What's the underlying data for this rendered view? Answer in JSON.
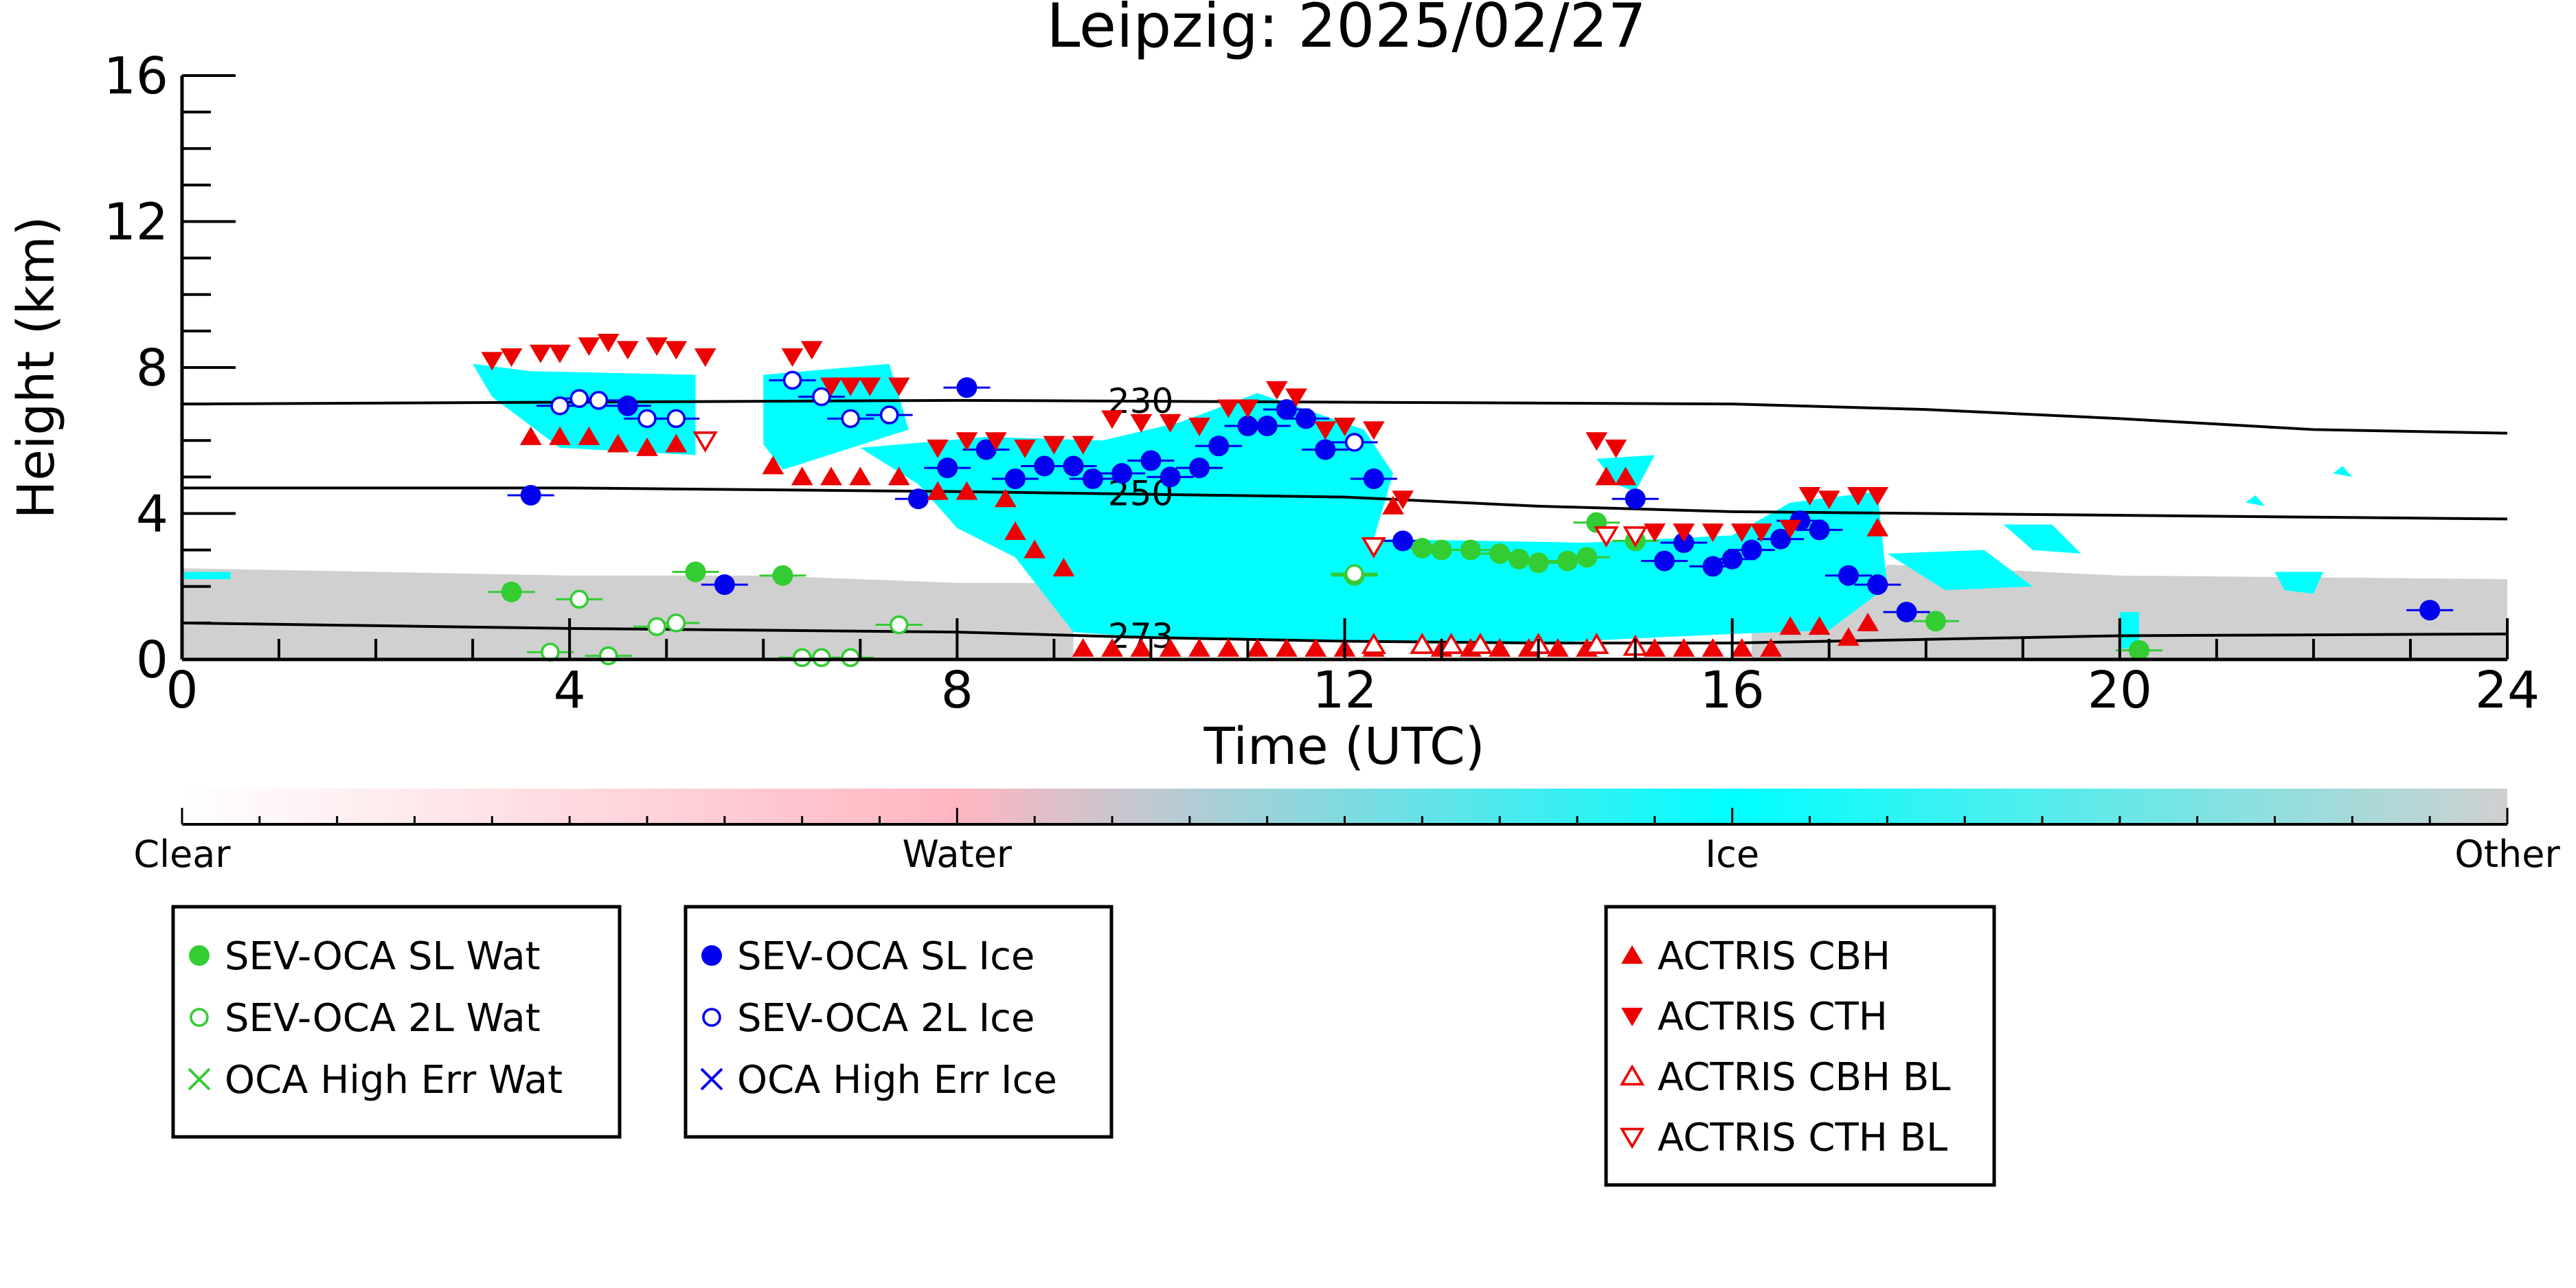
{
  "chart_data": {
    "type": "scatter",
    "title": "Leipzig: 2025/02/27",
    "xlabel": "Time (UTC)",
    "ylabel": "Height (km)",
    "xlim": [
      0,
      24
    ],
    "ylim": [
      0,
      16
    ],
    "x_ticks": [
      0,
      4,
      8,
      12,
      16,
      20,
      24
    ],
    "y_ticks": [
      0,
      4,
      8,
      12,
      16
    ],
    "colors": {
      "water_points": "#33cc33",
      "ice_points": "#0000ee",
      "actris": "#ee0000",
      "ice_mask": "#00ffff",
      "other_mask": "#d0d0d0",
      "isotherm": "#000000"
    },
    "colorbar": {
      "labels": [
        "Clear",
        "Water",
        "Ice",
        "Other"
      ],
      "stops": [
        "#ffffff",
        "#ffb6c1",
        "#00ffff",
        "#d0d0d0"
      ]
    },
    "legends": [
      {
        "items": [
          {
            "label": "SEV-OCA SL Wat",
            "marker": "circle-filled",
            "color": "#33cc33"
          },
          {
            "label": "SEV-OCA 2L Wat",
            "marker": "circle-open",
            "color": "#33cc33"
          },
          {
            "label": "OCA High Err Wat",
            "marker": "x",
            "color": "#33cc33"
          }
        ]
      },
      {
        "items": [
          {
            "label": "SEV-OCA SL Ice",
            "marker": "circle-filled",
            "color": "#0000ee"
          },
          {
            "label": "SEV-OCA 2L Ice",
            "marker": "circle-open",
            "color": "#0000ee"
          },
          {
            "label": "OCA High Err Ice",
            "marker": "x",
            "color": "#0000ee"
          }
        ]
      },
      {
        "items": [
          {
            "label": "ACTRIS CBH",
            "marker": "triangle-up-filled",
            "color": "#ee0000"
          },
          {
            "label": "ACTRIS CTH",
            "marker": "triangle-down-filled",
            "color": "#ee0000"
          },
          {
            "label": "ACTRIS CBH BL",
            "marker": "triangle-up-open",
            "color": "#ee0000"
          },
          {
            "label": "ACTRIS CTH BL",
            "marker": "triangle-down-open",
            "color": "#ee0000"
          }
        ]
      }
    ],
    "isotherms": [
      {
        "label": "230",
        "label_x": 9.5,
        "points": [
          [
            0,
            7.0
          ],
          [
            4,
            7.05
          ],
          [
            8,
            7.1
          ],
          [
            12,
            7.05
          ],
          [
            16,
            7.0
          ],
          [
            18,
            6.85
          ],
          [
            20,
            6.6
          ],
          [
            22,
            6.3
          ],
          [
            24,
            6.2
          ]
        ]
      },
      {
        "label": "250",
        "label_x": 9.5,
        "points": [
          [
            0,
            4.7
          ],
          [
            4,
            4.7
          ],
          [
            8,
            4.6
          ],
          [
            12,
            4.45
          ],
          [
            14,
            4.2
          ],
          [
            16,
            4.05
          ],
          [
            20,
            3.95
          ],
          [
            24,
            3.85
          ]
        ]
      },
      {
        "label": "273",
        "label_x": 9.5,
        "points": [
          [
            0,
            1.0
          ],
          [
            4,
            0.85
          ],
          [
            8,
            0.75
          ],
          [
            10,
            0.6
          ],
          [
            12,
            0.5
          ],
          [
            14,
            0.45
          ],
          [
            16,
            0.45
          ],
          [
            18,
            0.55
          ],
          [
            20,
            0.65
          ],
          [
            24,
            0.7
          ]
        ]
      }
    ],
    "cloud_mask": {
      "other": [
        [
          [
            0,
            2.5
          ],
          [
            4,
            2.3
          ],
          [
            6,
            2.3
          ],
          [
            8,
            2.1
          ],
          [
            9.2,
            2.1
          ],
          [
            9.2,
            0
          ],
          [
            0,
            0
          ]
        ],
        [
          [
            16.2,
            1.5
          ],
          [
            17.4,
            1.6
          ],
          [
            17.6,
            2.6
          ],
          [
            20,
            2.3
          ],
          [
            24,
            2.2
          ],
          [
            24,
            0
          ],
          [
            16.2,
            0
          ]
        ]
      ],
      "ice": [
        [
          [
            3,
            8.1
          ],
          [
            3.6,
            7.9
          ],
          [
            5.3,
            7.8
          ],
          [
            5.3,
            5.6
          ],
          [
            3.9,
            5.8
          ],
          [
            3.2,
            7.2
          ]
        ],
        [
          [
            6.0,
            7.8
          ],
          [
            7.3,
            8.1
          ],
          [
            7.5,
            6.3
          ],
          [
            6.2,
            5.2
          ],
          [
            6.0,
            5.9
          ]
        ],
        [
          [
            7.0,
            5.8
          ],
          [
            8.3,
            6.1
          ],
          [
            9.5,
            6.0
          ],
          [
            10.3,
            6.5
          ],
          [
            11.1,
            7.3
          ],
          [
            12.2,
            6.3
          ],
          [
            12.5,
            5.1
          ],
          [
            12.3,
            3.3
          ],
          [
            14.5,
            3.2
          ],
          [
            16.0,
            3.4
          ],
          [
            16.6,
            4.3
          ],
          [
            17.5,
            4.6
          ],
          [
            17.6,
            2.0
          ],
          [
            17.0,
            0.8
          ],
          [
            16.0,
            0.7
          ],
          [
            14,
            0.45
          ],
          [
            12,
            0.5
          ],
          [
            10,
            0.6
          ],
          [
            9.2,
            0.75
          ],
          [
            8.6,
            2.8
          ],
          [
            8.0,
            3.6
          ],
          [
            7.6,
            4.8
          ]
        ],
        [
          [
            14.6,
            5.5
          ],
          [
            15.2,
            5.6
          ],
          [
            15.0,
            4.6
          ],
          [
            14.8,
            4.8
          ]
        ],
        [
          [
            17.6,
            2.9
          ],
          [
            18.6,
            3.0
          ],
          [
            19.1,
            2.0
          ],
          [
            18.2,
            1.9
          ]
        ],
        [
          [
            18.8,
            3.7
          ],
          [
            19.3,
            3.7
          ],
          [
            19.6,
            2.9
          ],
          [
            19.1,
            3.0
          ]
        ],
        [
          [
            21.6,
            2.4
          ],
          [
            22.1,
            2.4
          ],
          [
            22.0,
            1.8
          ],
          [
            21.7,
            1.9
          ]
        ],
        [
          [
            20.0,
            1.3
          ],
          [
            20.2,
            1.3
          ],
          [
            20.2,
            0.3
          ],
          [
            20.0,
            0.3
          ]
        ],
        [
          [
            0,
            2.4
          ],
          [
            0.5,
            2.4
          ],
          [
            0.5,
            2.2
          ],
          [
            0,
            2.2
          ]
        ],
        [
          [
            21.3,
            4.3
          ],
          [
            21.4,
            4.5
          ],
          [
            21.5,
            4.2
          ]
        ],
        [
          [
            22.2,
            5.1
          ],
          [
            22.3,
            5.3
          ],
          [
            22.4,
            5.0
          ]
        ]
      ]
    },
    "series": [
      {
        "name": "SEV-OCA SL Wat",
        "points": [
          [
            3.4,
            1.85
          ],
          [
            5.3,
            2.4
          ],
          [
            6.2,
            2.3
          ],
          [
            12.1,
            2.3
          ],
          [
            12.8,
            3.05
          ],
          [
            13.0,
            3.0
          ],
          [
            13.3,
            3.0
          ],
          [
            13.6,
            2.9
          ],
          [
            13.8,
            2.75
          ],
          [
            14.0,
            2.65
          ],
          [
            14.3,
            2.7
          ],
          [
            14.5,
            2.8
          ],
          [
            14.6,
            3.75
          ],
          [
            15.0,
            3.25
          ],
          [
            18.1,
            1.05
          ],
          [
            20.2,
            0.25
          ]
        ]
      },
      {
        "name": "SEV-OCA 2L Wat",
        "points": [
          [
            3.8,
            0.2
          ],
          [
            4.1,
            1.65
          ],
          [
            4.4,
            0.1
          ],
          [
            4.9,
            0.9
          ],
          [
            5.1,
            1.0
          ],
          [
            6.4,
            0.05
          ],
          [
            6.6,
            0.05
          ],
          [
            6.9,
            0.05
          ],
          [
            7.4,
            0.95
          ],
          [
            12.1,
            2.35
          ]
        ]
      },
      {
        "name": "SEV-OCA SL Ice",
        "points": [
          [
            3.6,
            4.5
          ],
          [
            4.6,
            6.95
          ],
          [
            5.6,
            2.05
          ],
          [
            7.6,
            4.4
          ],
          [
            7.9,
            5.25
          ],
          [
            8.1,
            7.45
          ],
          [
            8.3,
            5.75
          ],
          [
            8.6,
            4.95
          ],
          [
            8.9,
            5.3
          ],
          [
            9.2,
            5.3
          ],
          [
            9.4,
            4.95
          ],
          [
            9.7,
            5.1
          ],
          [
            10.0,
            5.45
          ],
          [
            10.2,
            5.0
          ],
          [
            10.5,
            5.25
          ],
          [
            10.7,
            5.85
          ],
          [
            11.0,
            6.4
          ],
          [
            11.2,
            6.4
          ],
          [
            11.4,
            6.85
          ],
          [
            11.6,
            6.6
          ],
          [
            11.8,
            5.75
          ],
          [
            12.3,
            4.95
          ],
          [
            12.6,
            3.25
          ],
          [
            15.0,
            4.4
          ],
          [
            15.3,
            2.7
          ],
          [
            15.5,
            3.2
          ],
          [
            15.8,
            2.55
          ],
          [
            16.0,
            2.75
          ],
          [
            16.2,
            3.0
          ],
          [
            16.5,
            3.3
          ],
          [
            16.7,
            3.8
          ],
          [
            16.9,
            3.55
          ],
          [
            17.2,
            2.3
          ],
          [
            17.5,
            2.05
          ],
          [
            17.8,
            1.3
          ],
          [
            23.2,
            1.35
          ]
        ]
      },
      {
        "name": "SEV-OCA 2L Ice",
        "points": [
          [
            3.9,
            6.95
          ],
          [
            4.1,
            7.15
          ],
          [
            4.3,
            7.1
          ],
          [
            4.8,
            6.6
          ],
          [
            5.1,
            6.6
          ],
          [
            6.3,
            7.65
          ],
          [
            6.6,
            7.2
          ],
          [
            6.9,
            6.6
          ],
          [
            7.3,
            6.7
          ],
          [
            12.1,
            5.95
          ]
        ]
      },
      {
        "name": "ACTRIS CTH",
        "points": [
          [
            3.2,
            8.2
          ],
          [
            3.4,
            8.3
          ],
          [
            3.7,
            8.4
          ],
          [
            3.9,
            8.4
          ],
          [
            4.2,
            8.6
          ],
          [
            4.4,
            8.7
          ],
          [
            4.6,
            8.5
          ],
          [
            4.9,
            8.6
          ],
          [
            5.1,
            8.5
          ],
          [
            5.4,
            8.3
          ],
          [
            6.3,
            8.3
          ],
          [
            6.5,
            8.5
          ],
          [
            6.7,
            7.5
          ],
          [
            6.9,
            7.5
          ],
          [
            7.1,
            7.5
          ],
          [
            7.4,
            7.5
          ],
          [
            7.8,
            5.8
          ],
          [
            8.1,
            6.0
          ],
          [
            8.4,
            6.0
          ],
          [
            8.7,
            5.8
          ],
          [
            9.0,
            5.9
          ],
          [
            9.3,
            5.9
          ],
          [
            9.6,
            6.6
          ],
          [
            9.9,
            6.5
          ],
          [
            10.2,
            6.5
          ],
          [
            10.5,
            6.4
          ],
          [
            10.8,
            6.9
          ],
          [
            11.0,
            6.9
          ],
          [
            11.3,
            7.4
          ],
          [
            11.5,
            7.2
          ],
          [
            11.8,
            6.3
          ],
          [
            12.0,
            6.4
          ],
          [
            12.3,
            6.3
          ],
          [
            12.6,
            4.4
          ],
          [
            14.6,
            6.0
          ],
          [
            14.8,
            5.8
          ],
          [
            15.2,
            3.5
          ],
          [
            15.5,
            3.5
          ],
          [
            15.8,
            3.5
          ],
          [
            16.1,
            3.5
          ],
          [
            16.3,
            3.5
          ],
          [
            16.6,
            3.6
          ],
          [
            16.8,
            4.5
          ],
          [
            17.0,
            4.4
          ],
          [
            17.3,
            4.5
          ],
          [
            17.5,
            4.5
          ]
        ]
      },
      {
        "name": "ACTRIS CBH",
        "points": [
          [
            3.6,
            6.1
          ],
          [
            3.9,
            6.1
          ],
          [
            4.2,
            6.1
          ],
          [
            4.5,
            5.9
          ],
          [
            4.8,
            5.8
          ],
          [
            5.1,
            5.9
          ],
          [
            6.1,
            5.3
          ],
          [
            6.4,
            5.0
          ],
          [
            6.7,
            5.0
          ],
          [
            7.0,
            5.0
          ],
          [
            7.4,
            5.0
          ],
          [
            7.8,
            4.6
          ],
          [
            8.1,
            4.6
          ],
          [
            8.5,
            4.4
          ],
          [
            8.6,
            3.5
          ],
          [
            8.8,
            3.0
          ],
          [
            9.1,
            2.5
          ],
          [
            9.3,
            0.3
          ],
          [
            9.6,
            0.3
          ],
          [
            9.9,
            0.3
          ],
          [
            10.2,
            0.3
          ],
          [
            10.5,
            0.3
          ],
          [
            10.8,
            0.3
          ],
          [
            11.1,
            0.3
          ],
          [
            11.4,
            0.3
          ],
          [
            11.7,
            0.3
          ],
          [
            12.0,
            0.3
          ],
          [
            12.3,
            0.3
          ],
          [
            12.5,
            4.2
          ],
          [
            13.0,
            0.3
          ],
          [
            13.3,
            0.3
          ],
          [
            13.6,
            0.3
          ],
          [
            13.9,
            0.3
          ],
          [
            14.2,
            0.3
          ],
          [
            14.5,
            0.3
          ],
          [
            14.7,
            5.0
          ],
          [
            14.9,
            5.0
          ],
          [
            15.2,
            0.3
          ],
          [
            15.5,
            0.3
          ],
          [
            15.8,
            0.3
          ],
          [
            16.1,
            0.3
          ],
          [
            16.4,
            0.3
          ],
          [
            16.6,
            0.9
          ],
          [
            16.9,
            0.9
          ],
          [
            17.2,
            0.6
          ],
          [
            17.4,
            1.0
          ],
          [
            17.5,
            3.6
          ]
        ]
      },
      {
        "name": "ACTRIS CBH BL",
        "points": [
          [
            12.3,
            0.4
          ],
          [
            12.8,
            0.4
          ],
          [
            13.1,
            0.4
          ],
          [
            13.4,
            0.4
          ],
          [
            14.0,
            0.4
          ],
          [
            14.6,
            0.4
          ],
          [
            15.0,
            0.35
          ]
        ]
      },
      {
        "name": "ACTRIS CTH BL",
        "points": [
          [
            5.4,
            6.0
          ],
          [
            12.3,
            3.1
          ],
          [
            14.7,
            3.4
          ],
          [
            15.0,
            3.4
          ]
        ]
      }
    ]
  }
}
